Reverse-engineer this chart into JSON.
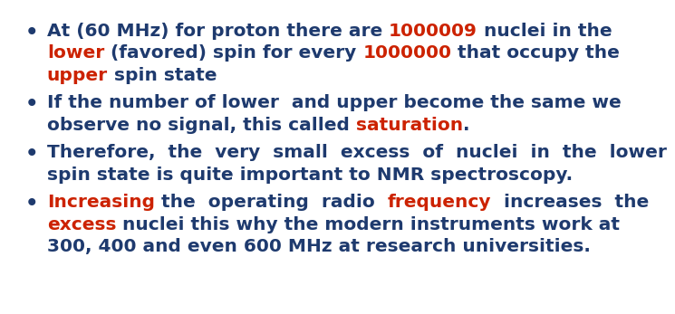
{
  "background_color": "#ffffff",
  "blue": "#1e3a6e",
  "red": "#cc2200",
  "font_size": 14.5,
  "font_weight": "bold",
  "bullets": [
    {
      "lines": [
        [
          {
            "text": "At (60 MHz) for proton there are ",
            "color": "#1e3a6e"
          },
          {
            "text": "1000009",
            "color": "#cc2200"
          },
          {
            "text": " nuclei in the",
            "color": "#1e3a6e"
          }
        ],
        [
          {
            "text": "lower",
            "color": "#cc2200"
          },
          {
            "text": " (favored) spin for every ",
            "color": "#1e3a6e"
          },
          {
            "text": "1000000",
            "color": "#cc2200"
          },
          {
            "text": " that occupy the",
            "color": "#1e3a6e"
          }
        ],
        [
          {
            "text": "upper",
            "color": "#cc2200"
          },
          {
            "text": " spin state",
            "color": "#1e3a6e"
          }
        ]
      ]
    },
    {
      "lines": [
        [
          {
            "text": "If the number of lower  and upper become the same we",
            "color": "#1e3a6e"
          }
        ],
        [
          {
            "text": "observe no signal, this called ",
            "color": "#1e3a6e"
          },
          {
            "text": "saturation",
            "color": "#cc2200"
          },
          {
            "text": ".",
            "color": "#1e3a6e"
          }
        ]
      ]
    },
    {
      "lines": [
        [
          {
            "text": "Therefore,  the  very  small  excess  of  nuclei  in  the  lower",
            "color": "#1e3a6e"
          }
        ],
        [
          {
            "text": "spin state is quite important to NMR spectroscopy.",
            "color": "#1e3a6e"
          }
        ]
      ]
    },
    {
      "lines": [
        [
          {
            "text": "Increasing",
            "color": "#cc2200"
          },
          {
            "text": " the  operating  radio  ",
            "color": "#1e3a6e"
          },
          {
            "text": "frequency",
            "color": "#cc2200"
          },
          {
            "text": "  increases  the",
            "color": "#1e3a6e"
          }
        ],
        [
          {
            "text": "excess",
            "color": "#cc2200"
          },
          {
            "text": " nuclei this why the modern instruments work at",
            "color": "#1e3a6e"
          }
        ],
        [
          {
            "text": "300, 400 and even 600 MHz at research universities.",
            "color": "#1e3a6e"
          }
        ]
      ]
    }
  ]
}
